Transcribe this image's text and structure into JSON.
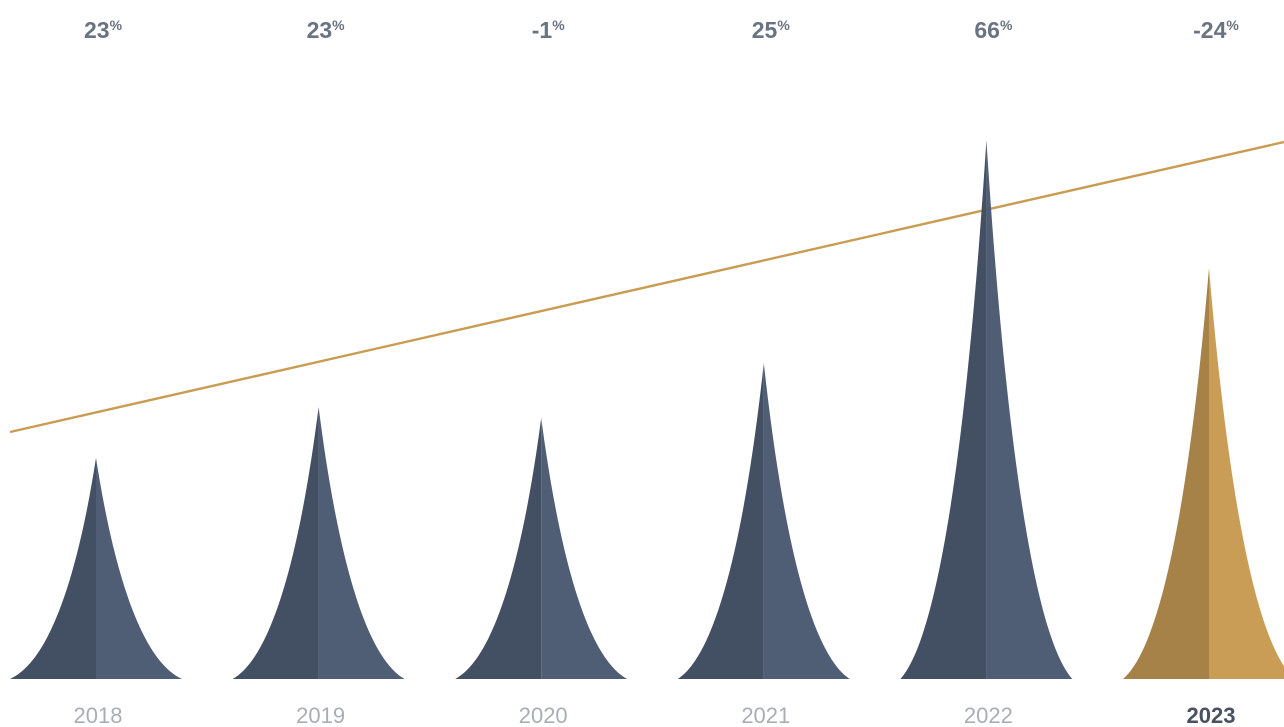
{
  "chart_data": {
    "type": "bar",
    "categories": [
      "2018",
      "2019",
      "2020",
      "2021",
      "2022",
      "2023"
    ],
    "values": [
      23,
      23,
      -1,
      25,
      66,
      -24
    ],
    "value_labels": [
      "23",
      "23",
      "-1",
      "25",
      "66",
      "-24"
    ],
    "value_suffix": "%",
    "highlight_category": "2023",
    "trendline": true,
    "colors": {
      "bar_dark": "#434f63",
      "bar_light": "#505e75",
      "highlight_dark": "#a68249",
      "highlight_light": "#c99d56",
      "trend": "#c99c52",
      "pct_text": "#6a7382",
      "year_text": "#a9aeb6",
      "highlight_year_text": "#4a5160"
    }
  }
}
